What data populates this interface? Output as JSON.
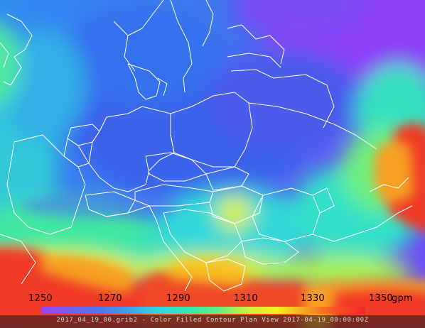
{
  "map": {
    "product": "Color Filled Contour Plan View",
    "field_units": "gpm"
  },
  "legend": {
    "ticks": [
      "1250",
      "1270",
      "1290",
      "1310",
      "1330",
      "1350"
    ],
    "units": "gpm",
    "colors": [
      "#a040f8",
      "#7060f0",
      "#4a78f0",
      "#3fa0f0",
      "#30d8e0",
      "#33e8b0",
      "#60f080",
      "#c8f040",
      "#f8f020",
      "#f8a020",
      "#f85020",
      "#f02828"
    ]
  },
  "footer": {
    "text": "2017_04_19_00.grib2 - Color Filled Contour Plan View 2017-04-19_00:00:00Z"
  }
}
